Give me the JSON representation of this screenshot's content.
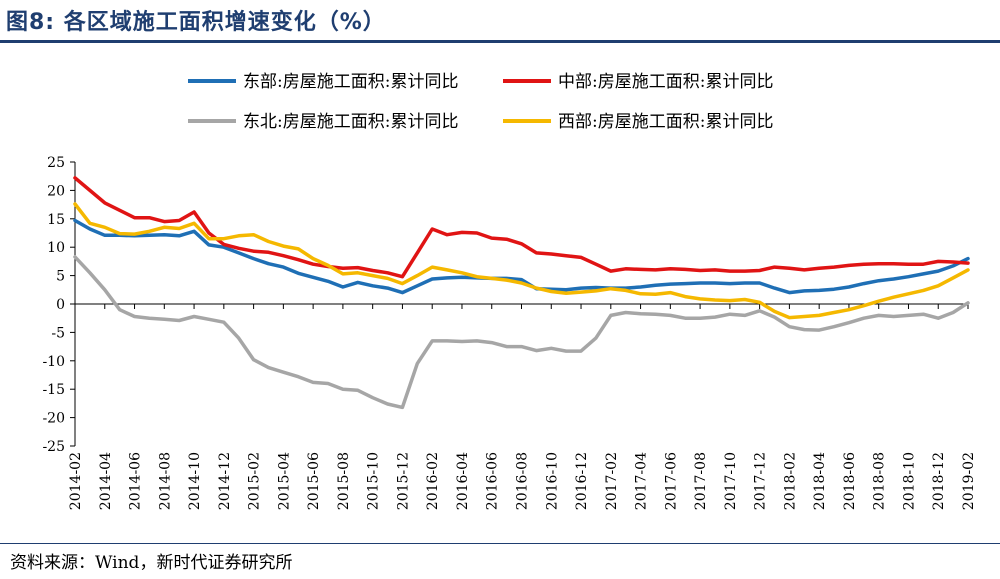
{
  "title": "图8:  各区域施工面积增速变化（%）",
  "source": "资料来源：Wind，新时代证券研究所",
  "chart_data": {
    "type": "line",
    "ylim": [
      -25,
      25
    ],
    "yticks": [
      25,
      20,
      15,
      10,
      5,
      0,
      -5,
      -10,
      -15,
      -20,
      -25
    ],
    "x": [
      "2014-02",
      "2014-03",
      "2014-04",
      "2014-05",
      "2014-06",
      "2014-07",
      "2014-08",
      "2014-09",
      "2014-10",
      "2014-11",
      "2014-12",
      "2015-01",
      "2015-02",
      "2015-03",
      "2015-04",
      "2015-05",
      "2015-06",
      "2015-07",
      "2015-08",
      "2015-09",
      "2015-10",
      "2015-11",
      "2015-12",
      "2016-01",
      "2016-02",
      "2016-03",
      "2016-04",
      "2016-05",
      "2016-06",
      "2016-07",
      "2016-08",
      "2016-09",
      "2016-10",
      "2016-11",
      "2016-12",
      "2017-01",
      "2017-02",
      "2017-03",
      "2017-04",
      "2017-05",
      "2017-06",
      "2017-07",
      "2017-08",
      "2017-09",
      "2017-10",
      "2017-11",
      "2017-12",
      "2018-01",
      "2018-02",
      "2018-03",
      "2018-04",
      "2018-05",
      "2018-06",
      "2018-07",
      "2018-08",
      "2018-09",
      "2018-10",
      "2018-11",
      "2018-12",
      "2019-01",
      "2019-02"
    ],
    "xtick_labels": [
      "2014-02",
      "2014-04",
      "2014-06",
      "2014-08",
      "2014-10",
      "2014-12",
      "2015-02",
      "2015-04",
      "2015-06",
      "2015-08",
      "2015-10",
      "2015-12",
      "2016-02",
      "2016-04",
      "2016-06",
      "2016-08",
      "2016-10",
      "2016-12",
      "2017-02",
      "2017-04",
      "2017-06",
      "2017-08",
      "2017-10",
      "2017-12",
      "2018-02",
      "2018-04",
      "2018-06",
      "2018-08",
      "2018-10",
      "2018-12",
      "2019-02"
    ],
    "legend_position": "top",
    "series": [
      {
        "name": "东部:房屋施工面积:累计同比",
        "color": "#1f6fb5",
        "values": [
          14.7,
          13.2,
          12.1,
          12.1,
          12.0,
          12.1,
          12.2,
          12.0,
          12.8,
          10.4,
          10.0,
          9.0,
          8.0,
          7.1,
          6.5,
          5.4,
          4.7,
          4.0,
          3.0,
          3.8,
          3.2,
          2.8,
          2.0,
          3.2,
          4.4,
          4.6,
          4.7,
          4.6,
          4.5,
          4.5,
          4.3,
          2.7,
          2.6,
          2.5,
          2.8,
          2.9,
          2.8,
          2.8,
          3.0,
          3.3,
          3.5,
          3.6,
          3.7,
          3.7,
          3.6,
          3.7,
          3.7,
          2.8,
          2.0,
          2.3,
          2.4,
          2.6,
          3.0,
          3.6,
          4.1,
          4.4,
          4.8,
          5.3,
          5.8,
          6.7,
          8.0
        ]
      },
      {
        "name": "中部:房屋施工面积:累计同比",
        "color": "#e01414",
        "values": [
          22.2,
          20.0,
          17.8,
          16.5,
          15.2,
          15.2,
          14.5,
          14.7,
          16.2,
          12.5,
          10.5,
          9.8,
          9.3,
          9.1,
          8.5,
          7.8,
          7.0,
          6.6,
          6.3,
          6.4,
          5.9,
          5.5,
          4.8,
          9.0,
          13.2,
          12.2,
          12.6,
          12.5,
          11.6,
          11.4,
          10.6,
          9.0,
          8.8,
          8.5,
          8.2,
          7.0,
          5.8,
          6.2,
          6.1,
          6.0,
          6.2,
          6.1,
          5.9,
          6.0,
          5.8,
          5.8,
          5.9,
          6.5,
          6.3,
          6.0,
          6.3,
          6.5,
          6.8,
          7.0,
          7.1,
          7.1,
          7.0,
          7.0,
          7.5,
          7.4,
          7.2
        ]
      },
      {
        "name": "东北:房屋施工面积:累计同比",
        "color": "#a6a6a6",
        "values": [
          8.3,
          5.5,
          2.5,
          -1.0,
          -2.2,
          -2.5,
          -2.7,
          -2.9,
          -2.2,
          -2.7,
          -3.2,
          -6.0,
          -9.8,
          -11.2,
          -12.0,
          -12.8,
          -13.8,
          -14.0,
          -15.0,
          -15.2,
          -16.5,
          -17.6,
          -18.2,
          -10.5,
          -6.5,
          -6.5,
          -6.6,
          -6.5,
          -6.8,
          -7.5,
          -7.5,
          -8.2,
          -7.8,
          -8.3,
          -8.3,
          -6.0,
          -2.0,
          -1.5,
          -1.7,
          -1.8,
          -2.0,
          -2.5,
          -2.5,
          -2.3,
          -1.8,
          -2.0,
          -1.2,
          -2.3,
          -4.0,
          -4.5,
          -4.6,
          -4.0,
          -3.3,
          -2.5,
          -2.0,
          -2.2,
          -2.0,
          -1.8,
          -2.5,
          -1.5,
          0.2
        ]
      },
      {
        "name": "西部:房屋施工面积:累计同比",
        "color": "#f5b800",
        "values": [
          17.6,
          14.2,
          13.5,
          12.4,
          12.3,
          12.8,
          13.5,
          13.3,
          14.2,
          11.5,
          11.5,
          12.0,
          12.2,
          11.0,
          10.2,
          9.7,
          8.0,
          6.8,
          5.3,
          5.5,
          5.0,
          4.5,
          3.6,
          5.0,
          6.5,
          6.0,
          5.5,
          4.8,
          4.5,
          4.2,
          3.7,
          2.8,
          2.2,
          1.9,
          2.1,
          2.3,
          2.7,
          2.4,
          1.8,
          1.7,
          2.0,
          1.3,
          0.9,
          0.7,
          0.6,
          0.8,
          0.3,
          -1.3,
          -2.4,
          -2.2,
          -2.0,
          -1.5,
          -1.0,
          -0.3,
          0.5,
          1.2,
          1.8,
          2.4,
          3.2,
          4.6,
          6.0
        ]
      }
    ]
  }
}
